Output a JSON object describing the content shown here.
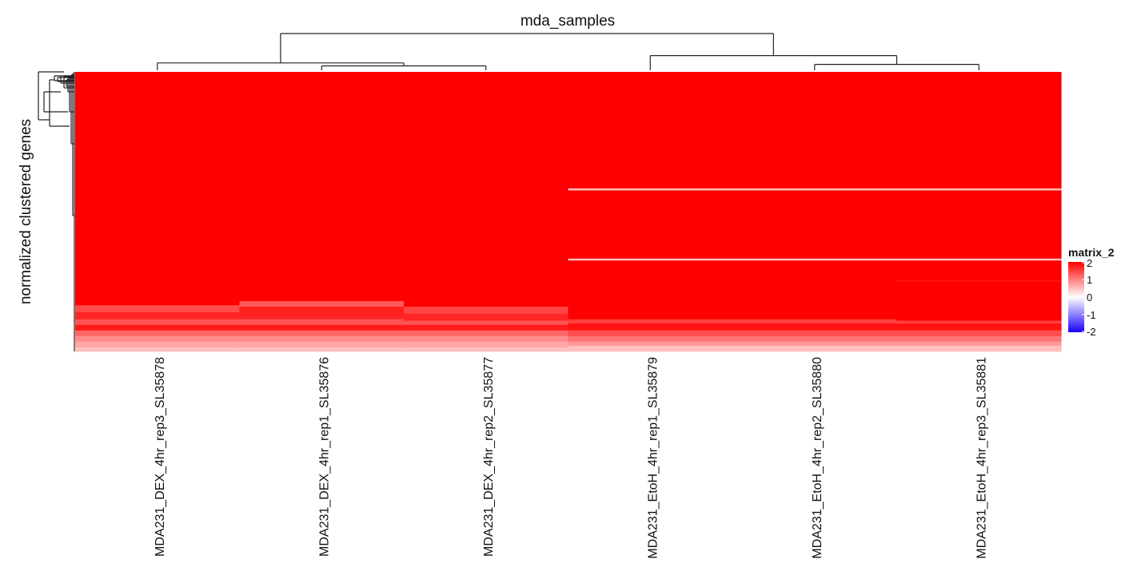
{
  "chart_data": {
    "type": "heatmap",
    "title": "mda_samples",
    "ylabel": "normalized clustered genes",
    "columns": [
      "MDA231_DEX_4hr_rep3_SL35878",
      "MDA231_DEX_4hr_rep1_SL35876",
      "MDA231_DEX_4hr_rep2_SL35877",
      "MDA231_EtoH_4hr_rep1_SL35879",
      "MDA231_EtoH_4hr_rep2_SL35880",
      "MDA231_EtoH_4hr_rep3_SL35881"
    ],
    "column_dendrogram": {
      "merges": [
        {
          "left": "col:1",
          "right": "col:2",
          "height": 0.06
        },
        {
          "left": "col:0",
          "right": "node:0",
          "height": 0.1
        },
        {
          "left": "col:4",
          "right": "col:5",
          "height": 0.08
        },
        {
          "left": "col:3",
          "right": "node:2",
          "height": 0.2
        },
        {
          "left": "node:1",
          "right": "node:3",
          "height": 0.5
        }
      ]
    },
    "legend": {
      "title": "matrix_2",
      "ticks": [
        2,
        1,
        0,
        -1,
        -2
      ],
      "colors": {
        "low": "#1a00ff",
        "mid": "#ffffff",
        "high": "#ff0000"
      },
      "range": [
        -2,
        2
      ]
    },
    "row_profiles": [
      {
        "columns": [
          0,
          1,
          2
        ],
        "rows": [
          {
            "from": 0.0,
            "to": 0.835,
            "value": 2.0
          },
          {
            "from": 0.835,
            "to": 0.86,
            "value": 1.4
          },
          {
            "from": 0.86,
            "to": 0.885,
            "value": 1.7
          },
          {
            "from": 0.885,
            "to": 0.905,
            "value": 1.35
          },
          {
            "from": 0.905,
            "to": 0.925,
            "value": 1.8
          },
          {
            "from": 0.925,
            "to": 0.945,
            "value": 1.2
          },
          {
            "from": 0.945,
            "to": 0.965,
            "value": 0.9
          },
          {
            "from": 0.965,
            "to": 0.985,
            "value": 0.7
          },
          {
            "from": 0.985,
            "to": 1.0,
            "value": 0.5
          }
        ],
        "overrides": {
          "1": [
            {
              "from": 0.0,
              "to": 0.82,
              "value": 2.0
            },
            {
              "from": 0.82,
              "to": 0.84,
              "value": 1.3
            },
            {
              "from": 0.84,
              "to": 0.87,
              "value": 1.75
            }
          ],
          "2": [
            {
              "from": 0.0,
              "to": 0.84,
              "value": 2.0
            },
            {
              "from": 0.84,
              "to": 0.865,
              "value": 1.45
            },
            {
              "from": 0.865,
              "to": 0.89,
              "value": 1.7
            }
          ]
        }
      },
      {
        "columns": [
          3,
          4,
          5
        ],
        "rows": [
          {
            "from": 0.0,
            "to": 0.417,
            "value": 2.0
          },
          {
            "from": 0.417,
            "to": 0.424,
            "value": 0.5
          },
          {
            "from": 0.424,
            "to": 0.668,
            "value": 2.0
          },
          {
            "from": 0.668,
            "to": 0.675,
            "value": 0.5
          },
          {
            "from": 0.675,
            "to": 0.885,
            "value": 2.0
          },
          {
            "from": 0.885,
            "to": 0.9,
            "value": 1.5
          },
          {
            "from": 0.9,
            "to": 0.925,
            "value": 1.85
          },
          {
            "from": 0.925,
            "to": 0.945,
            "value": 1.4
          },
          {
            "from": 0.945,
            "to": 0.965,
            "value": 1.1
          },
          {
            "from": 0.965,
            "to": 0.98,
            "value": 0.8
          },
          {
            "from": 0.98,
            "to": 1.0,
            "value": 0.5
          }
        ],
        "overrides": {
          "5": [
            {
              "from": 0.0,
              "to": 0.417,
              "value": 2.0
            },
            {
              "from": 0.417,
              "to": 0.424,
              "value": 0.5
            },
            {
              "from": 0.424,
              "to": 0.668,
              "value": 2.0
            },
            {
              "from": 0.668,
              "to": 0.675,
              "value": 0.5
            },
            {
              "from": 0.675,
              "to": 0.745,
              "value": 2.0
            },
            {
              "from": 0.745,
              "to": 0.75,
              "value": 1.85
            },
            {
              "from": 0.75,
              "to": 0.89,
              "value": 2.0
            }
          ]
        }
      }
    ]
  }
}
